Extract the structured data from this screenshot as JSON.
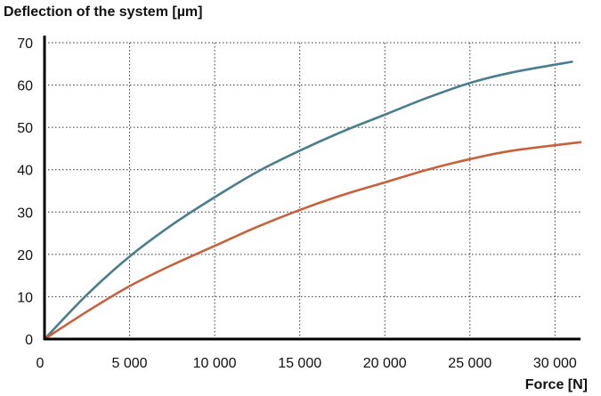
{
  "chart_data": {
    "type": "line",
    "title": "",
    "ylabel": "Deflection of the system [µm]",
    "xlabel": "Force [N]",
    "xlim": [
      0,
      31500
    ],
    "ylim": [
      0,
      70
    ],
    "xticks": [
      0,
      5000,
      10000,
      15000,
      20000,
      25000,
      30000
    ],
    "xtick_labels": [
      "0",
      "5 000",
      "10 000",
      "15 000",
      "20 000",
      "25 000",
      "30 000"
    ],
    "yticks": [
      0,
      10,
      20,
      30,
      40,
      50,
      60,
      70
    ],
    "ytick_labels": [
      "0",
      "10",
      "20",
      "30",
      "40",
      "50",
      "60",
      "70"
    ],
    "grid": true,
    "legend": "none",
    "series": [
      {
        "color": "#4a7d8f",
        "x": [
          0,
          2500,
          5000,
          7500,
          10000,
          12500,
          15000,
          17500,
          20000,
          22500,
          25000,
          27500,
          31000
        ],
        "y": [
          0,
          10.5,
          19.5,
          27,
          33.5,
          39.5,
          44.5,
          49,
          53,
          57,
          60.5,
          63,
          65.5
        ]
      },
      {
        "color": "#c8603a",
        "x": [
          0,
          2500,
          5000,
          7500,
          10000,
          12500,
          15000,
          17500,
          20000,
          22500,
          25000,
          27500,
          31500
        ],
        "y": [
          0,
          6.5,
          12.5,
          17.5,
          22,
          26.5,
          30.5,
          34,
          37,
          40,
          42.5,
          44.5,
          46.5
        ]
      }
    ]
  }
}
